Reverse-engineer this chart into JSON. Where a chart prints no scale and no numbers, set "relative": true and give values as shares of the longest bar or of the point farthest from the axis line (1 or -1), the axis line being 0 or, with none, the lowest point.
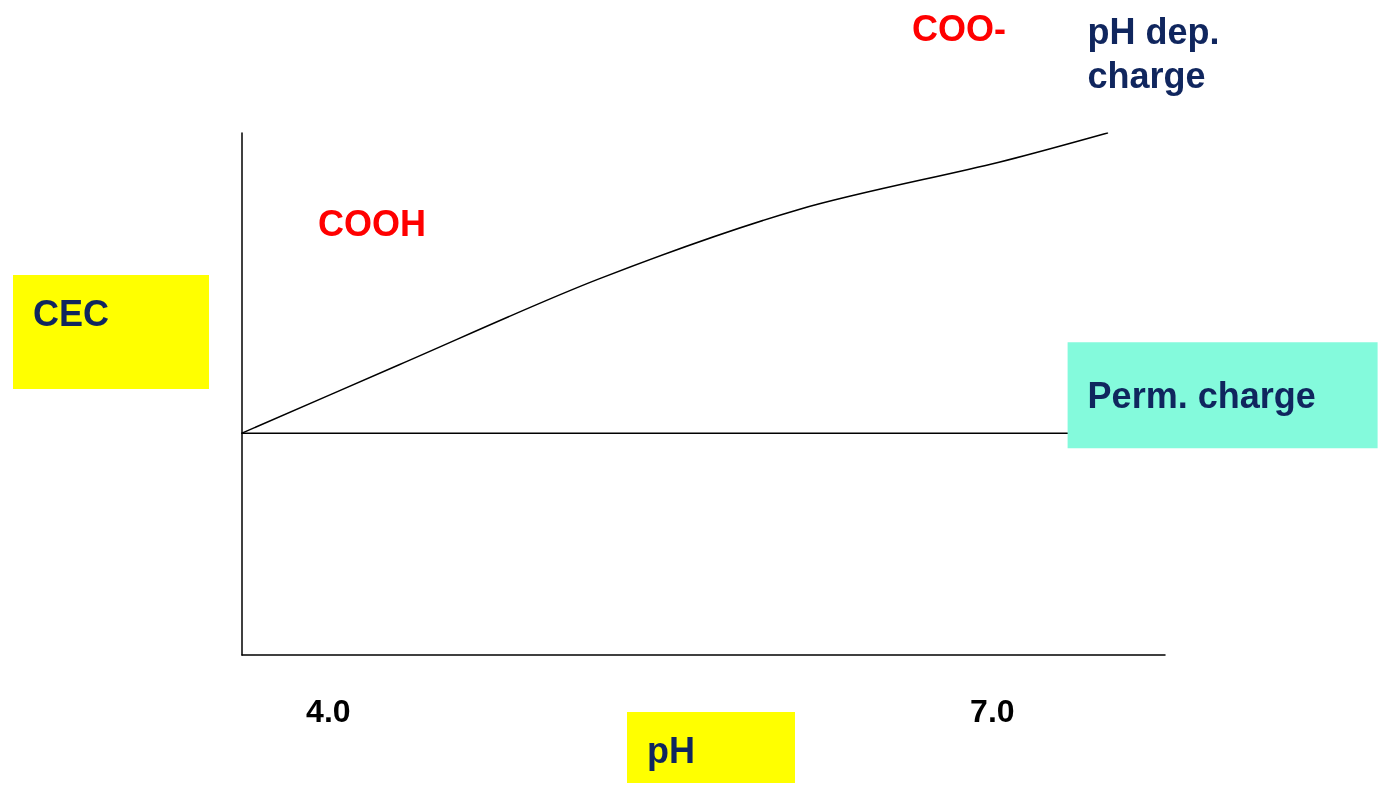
{
  "chart_data": {
    "type": "line",
    "relative": true,
    "xlabel": "pH",
    "ylabel": "CEC",
    "xlim": [
      3.61,
      7.78
    ],
    "xticks": [
      {
        "value": 4,
        "label": "4.0"
      },
      {
        "value": 7,
        "label": "7.0"
      }
    ],
    "grid": false,
    "legend": false,
    "marker": "none",
    "line_style": "solid",
    "annotations": [
      "COOH",
      "COO-"
    ],
    "series": [
      {
        "name": "pH dep. charge",
        "color": "#000000",
        "x": [
          3.61,
          4.32,
          5.22,
          6.13,
          7.03,
          7.52
        ],
        "values": [
          0.425,
          0.556,
          0.72,
          0.854,
          0.944,
          1
        ]
      },
      {
        "name": "Perm. charge",
        "color": "#000000",
        "x": [
          3.61,
          7.34
        ],
        "values": [
          0.425,
          0.425
        ]
      }
    ]
  }
}
